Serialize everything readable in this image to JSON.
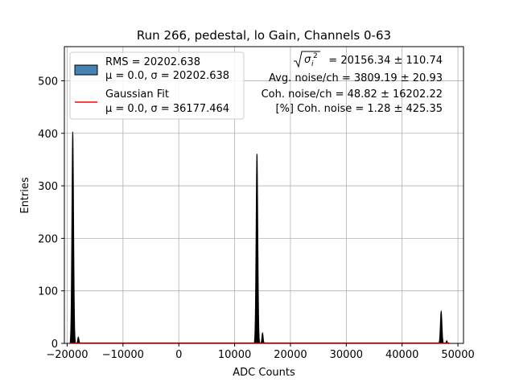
{
  "chart_data": {
    "type": "bar",
    "title": "Run 266, pedestal, lo Gain, Channels 0-63",
    "xlabel": "ADC Counts",
    "ylabel": "Entries",
    "xlim": [
      -20500,
      51000
    ],
    "ylim": [
      0,
      565
    ],
    "xticks": [
      -20000,
      -10000,
      0,
      10000,
      20000,
      30000,
      40000,
      50000
    ],
    "xtick_labels": [
      "−20000",
      "−10000",
      "0",
      "10000",
      "20000",
      "30000",
      "40000",
      "50000"
    ],
    "yticks": [
      0,
      100,
      200,
      300,
      400,
      500
    ],
    "ytick_labels": [
      "0",
      "100",
      "200",
      "300",
      "400",
      "500"
    ],
    "grid": true,
    "legend_position": "top-left",
    "histogram": {
      "name": "RMS = 20202.638",
      "stats": "μ = 0.0, σ = 20202.638",
      "color": "#4682b4",
      "edge_color": "#000000",
      "peaks": [
        {
          "center": -19000,
          "height": 403,
          "width": 150
        },
        {
          "center": -18000,
          "height": 12,
          "width": 110
        },
        {
          "center": 14000,
          "height": 361,
          "width": 150
        },
        {
          "center": 15000,
          "height": 20,
          "width": 110
        },
        {
          "center": 47000,
          "height": 61,
          "width": 140
        },
        {
          "center": 48000,
          "height": 5,
          "width": 90
        }
      ]
    },
    "fit": {
      "name": "Gaussian Fit",
      "stats": "μ = 0.0, σ = 36177.464",
      "color": "#ff0000",
      "mu": 0.0,
      "sigma": 36177.464
    },
    "annotations": {
      "sigma_value": " = 20156.34 ± 110.74",
      "avg_noise": "Avg. noise/ch = 3809.19 ± 20.93",
      "coh_noise": "Coh. noise/ch = 48.82 ± 16202.22",
      "coh_pct": "[%] Coh. noise = 1.28 ± 425.35"
    }
  }
}
